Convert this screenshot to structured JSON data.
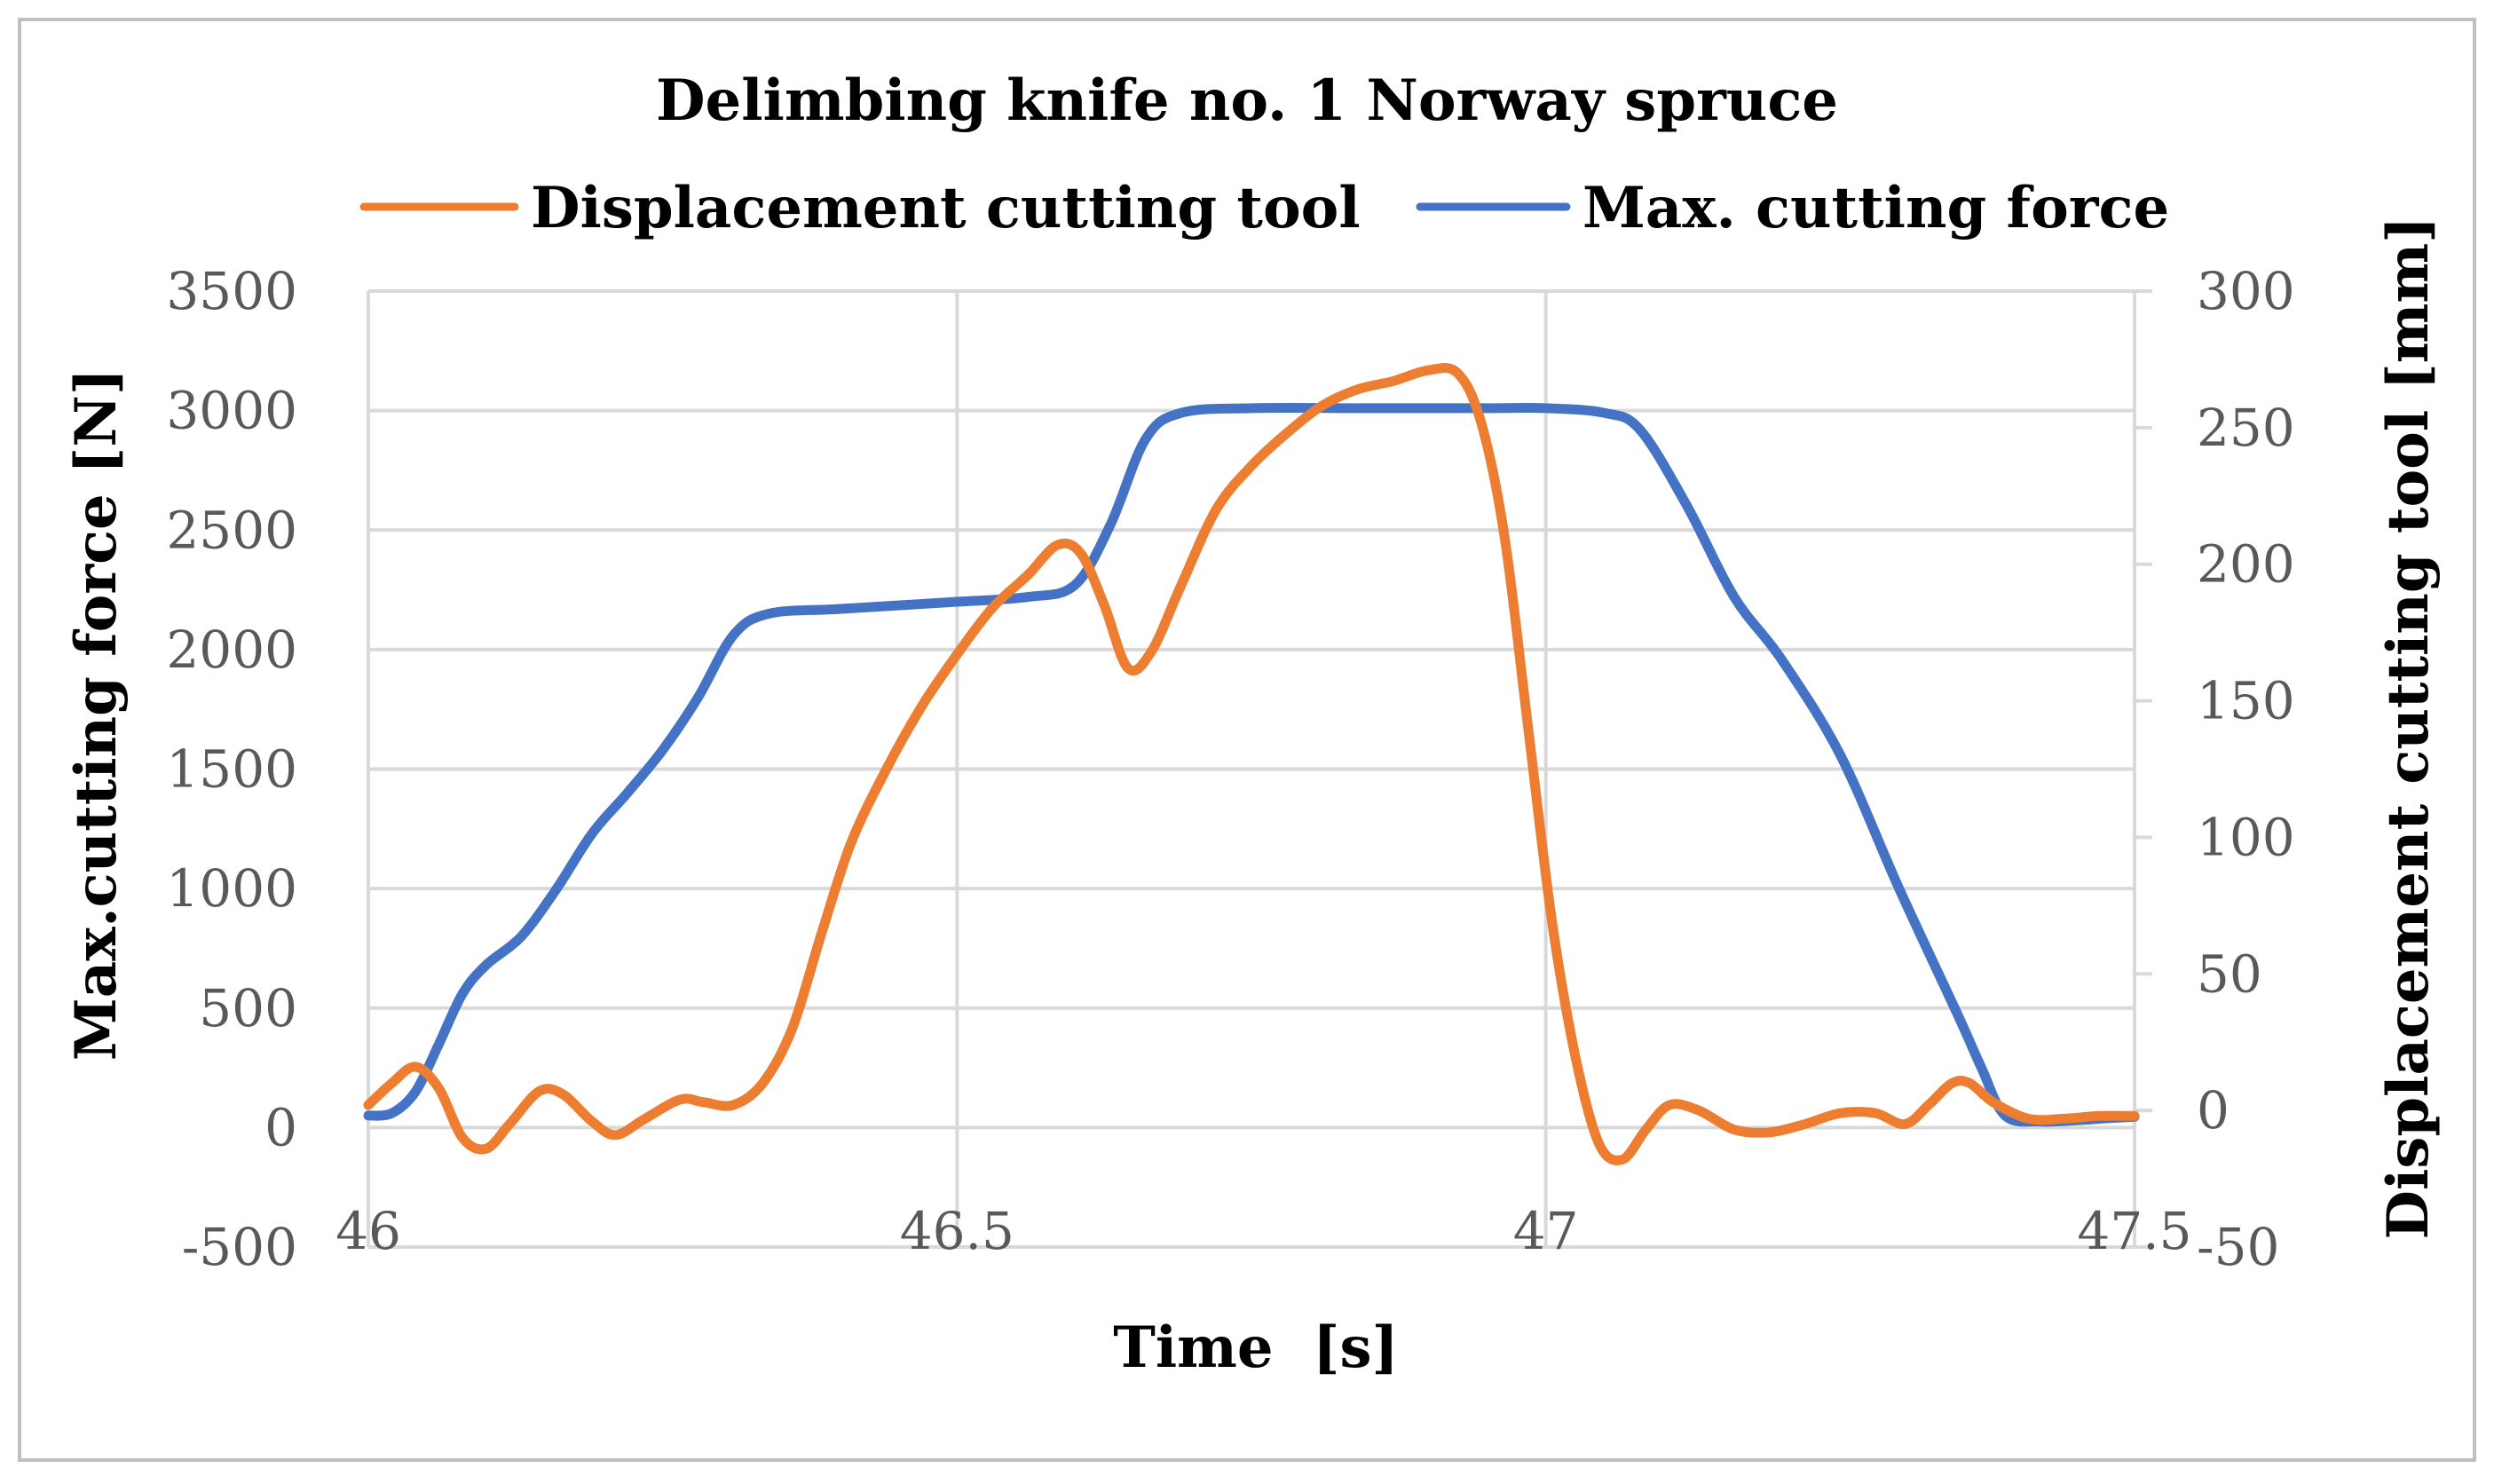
{
  "chart_data": {
    "type": "line",
    "title": "Delimbing knife no. 1 Norway spruce",
    "xlabel": "Time  [s]",
    "ylabel_left": "Max.cutting force [N]",
    "ylabel_right": "Displacement cutting tool [mm]",
    "xlim": [
      46,
      47.5
    ],
    "ylim_left": [
      -500,
      3500
    ],
    "ylim_right": [
      -50,
      300
    ],
    "x_ticks": [
      "46",
      "46.5",
      "47",
      "47.5"
    ],
    "y_left_ticks": [
      "3500",
      "3000",
      "2500",
      "2000",
      "1500",
      "1000",
      "500",
      "0",
      "-500"
    ],
    "y_right_ticks": [
      "300",
      "250",
      "200",
      "150",
      "100",
      "50",
      "0",
      "-50"
    ],
    "grid": true,
    "legend_position": "top",
    "colors": {
      "displacement": "#ED7D31",
      "force": "#4472C4",
      "grid": "#D9D9D9",
      "frame": "#BFBFBF"
    },
    "series": [
      {
        "name": "Displacement cutting tool",
        "axis": "right",
        "color": "#ED7D31",
        "points": [
          [
            46.0,
            2
          ],
          [
            46.02,
            10
          ],
          [
            46.04,
            16
          ],
          [
            46.06,
            8
          ],
          [
            46.08,
            -10
          ],
          [
            46.1,
            -14
          ],
          [
            46.12,
            -5
          ],
          [
            46.145,
            7
          ],
          [
            46.165,
            6
          ],
          [
            46.19,
            -4
          ],
          [
            46.21,
            -9
          ],
          [
            46.235,
            -3
          ],
          [
            46.265,
            4
          ],
          [
            46.285,
            3
          ],
          [
            46.31,
            2
          ],
          [
            46.335,
            10
          ],
          [
            46.36,
            30
          ],
          [
            46.385,
            65
          ],
          [
            46.41,
            98
          ],
          [
            46.44,
            125
          ],
          [
            46.47,
            148
          ],
          [
            46.5,
            167
          ],
          [
            46.53,
            184
          ],
          [
            46.56,
            196
          ],
          [
            46.585,
            207
          ],
          [
            46.605,
            204
          ],
          [
            46.625,
            185
          ],
          [
            46.645,
            162
          ],
          [
            46.665,
            168
          ],
          [
            46.69,
            192
          ],
          [
            46.72,
            220
          ],
          [
            46.75,
            236
          ],
          [
            46.78,
            248
          ],
          [
            46.81,
            258
          ],
          [
            46.84,
            264
          ],
          [
            46.87,
            267
          ],
          [
            46.9,
            271
          ],
          [
            46.925,
            270
          ],
          [
            46.945,
            252
          ],
          [
            46.965,
            210
          ],
          [
            46.985,
            140
          ],
          [
            47.005,
            70
          ],
          [
            47.025,
            20
          ],
          [
            47.045,
            -12
          ],
          [
            47.065,
            -18
          ],
          [
            47.085,
            -7
          ],
          [
            47.105,
            2
          ],
          [
            47.13,
            0
          ],
          [
            47.16,
            -7
          ],
          [
            47.19,
            -8
          ],
          [
            47.22,
            -5
          ],
          [
            47.25,
            -1
          ],
          [
            47.28,
            -1
          ],
          [
            47.305,
            -5
          ],
          [
            47.325,
            2
          ],
          [
            47.345,
            10
          ],
          [
            47.36,
            10
          ],
          [
            47.38,
            3
          ],
          [
            47.41,
            -3
          ],
          [
            47.44,
            -3
          ],
          [
            47.47,
            -2
          ],
          [
            47.5,
            -2
          ]
        ]
      },
      {
        "name": "Max. cutting force",
        "axis": "left",
        "color": "#4472C4",
        "points": [
          [
            46.0,
            50
          ],
          [
            46.02,
            60
          ],
          [
            46.04,
            150
          ],
          [
            46.06,
            350
          ],
          [
            46.08,
            560
          ],
          [
            46.1,
            680
          ],
          [
            46.13,
            800
          ],
          [
            46.16,
            1000
          ],
          [
            46.19,
            1230
          ],
          [
            46.22,
            1400
          ],
          [
            46.25,
            1580
          ],
          [
            46.28,
            1800
          ],
          [
            46.31,
            2060
          ],
          [
            46.34,
            2150
          ],
          [
            46.4,
            2170
          ],
          [
            46.5,
            2200
          ],
          [
            46.56,
            2220
          ],
          [
            46.6,
            2270
          ],
          [
            46.63,
            2520
          ],
          [
            46.66,
            2880
          ],
          [
            46.69,
            2990
          ],
          [
            46.75,
            3010
          ],
          [
            46.85,
            3010
          ],
          [
            46.95,
            3010
          ],
          [
            47.0,
            3010
          ],
          [
            47.05,
            2990
          ],
          [
            47.08,
            2920
          ],
          [
            47.12,
            2600
          ],
          [
            47.16,
            2220
          ],
          [
            47.2,
            1960
          ],
          [
            47.25,
            1560
          ],
          [
            47.3,
            1000
          ],
          [
            47.35,
            470
          ],
          [
            47.37,
            250
          ],
          [
            47.39,
            50
          ],
          [
            47.42,
            25
          ],
          [
            47.45,
            30
          ],
          [
            47.48,
            40
          ],
          [
            47.5,
            45
          ]
        ]
      }
    ]
  }
}
